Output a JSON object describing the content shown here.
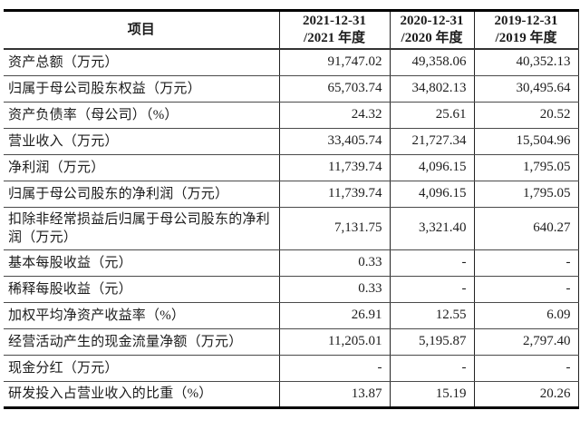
{
  "table": {
    "header": {
      "item_label": "项目",
      "periods": [
        {
          "line1": "2021-12-31",
          "line2": "/2021 年度"
        },
        {
          "line1": "2020-12-31",
          "line2": "/2020 年度"
        },
        {
          "line1": "2019-12-31",
          "line2": "/2019 年度"
        }
      ]
    },
    "rows": [
      {
        "label": "资产总额（万元）",
        "values": [
          "91,747.02",
          "49,358.06",
          "40,352.13"
        ]
      },
      {
        "label": "归属于母公司股东权益（万元）",
        "values": [
          "65,703.74",
          "34,802.13",
          "30,495.64"
        ]
      },
      {
        "label": "资产负债率（母公司）（%）",
        "values": [
          "24.32",
          "25.61",
          "20.52"
        ]
      },
      {
        "label": "营业收入（万元）",
        "values": [
          "33,405.74",
          "21,727.34",
          "15,504.96"
        ]
      },
      {
        "label": "净利润（万元）",
        "values": [
          "11,739.74",
          "4,096.15",
          "1,795.05"
        ]
      },
      {
        "label": "归属于母公司股东的净利润（万元）",
        "values": [
          "11,739.74",
          "4,096.15",
          "1,795.05"
        ]
      },
      {
        "label": "扣除非经常损益后归属于母公司股东的净利润（万元）",
        "values": [
          "7,131.75",
          "3,321.40",
          "640.27"
        ]
      },
      {
        "label": "基本每股收益（元）",
        "values": [
          "0.33",
          "-",
          "-"
        ]
      },
      {
        "label": "稀释每股收益（元）",
        "values": [
          "0.33",
          "-",
          "-"
        ]
      },
      {
        "label": "加权平均净资产收益率（%）",
        "values": [
          "26.91",
          "12.55",
          "6.09"
        ]
      },
      {
        "label": "经营活动产生的现金流量净额（万元）",
        "values": [
          "11,205.01",
          "5,195.87",
          "2,797.40"
        ]
      },
      {
        "label": "现金分红（万元）",
        "values": [
          "-",
          "-",
          "-"
        ]
      },
      {
        "label": "研发投入占营业收入的比重（%）",
        "values": [
          "13.87",
          "15.19",
          "20.26"
        ]
      }
    ]
  },
  "colors": {
    "background": "#ffffff",
    "text": "#1c1c1c",
    "rule_thick": "#000000",
    "rule_thin": "#4a4a4a"
  }
}
